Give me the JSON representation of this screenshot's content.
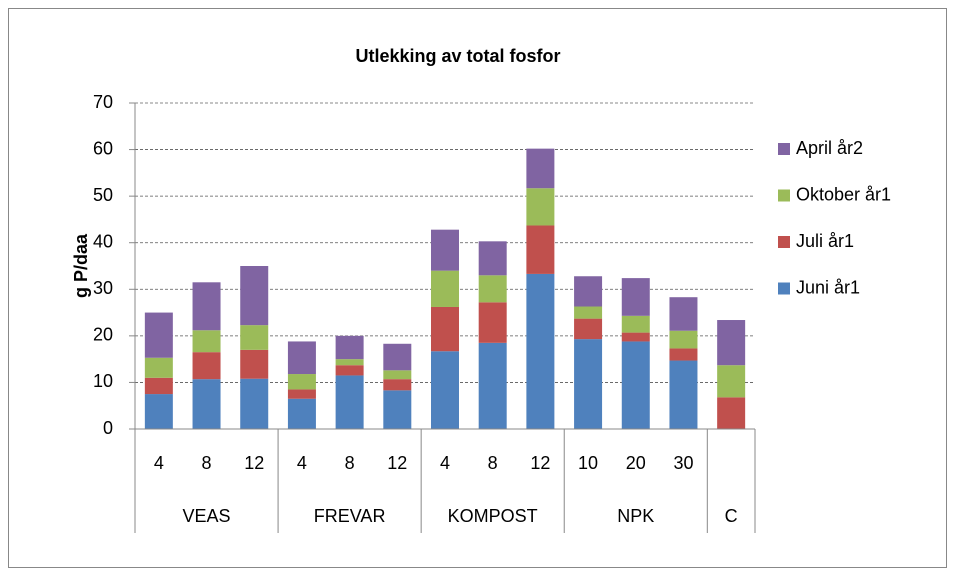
{
  "chart_data": {
    "type": "bar",
    "stacked": true,
    "title": "Utlekking av total fosfor",
    "y_label": "g P/daa",
    "groups": [
      {
        "name": "VEAS",
        "categories": [
          "4",
          "8",
          "12"
        ]
      },
      {
        "name": "FREVAR",
        "categories": [
          "4",
          "8",
          "12"
        ]
      },
      {
        "name": "KOMPOST",
        "categories": [
          "4",
          "8",
          "12"
        ]
      },
      {
        "name": "NPK",
        "categories": [
          "10",
          "20",
          "30"
        ]
      },
      {
        "name": "C",
        "categories": [
          null
        ]
      }
    ],
    "series": [
      {
        "name": "Juni år1",
        "color": "#4f81bd",
        "values": [
          7.5,
          10.7,
          10.8,
          6.5,
          11.5,
          8.3,
          16.7,
          18.5,
          33.3,
          19.3,
          18.8,
          14.7,
          0
        ]
      },
      {
        "name": "Juli år1",
        "color": "#c0504d",
        "values": [
          3.5,
          5.8,
          6.2,
          2.0,
          2.2,
          2.4,
          9.5,
          8.7,
          10.4,
          4.4,
          1.9,
          2.6,
          6.8
        ]
      },
      {
        "name": "Oktober år1",
        "color": "#9bbb59",
        "values": [
          4.3,
          4.7,
          5.3,
          3.3,
          1.3,
          1.9,
          7.8,
          5.8,
          8.0,
          2.6,
          3.6,
          3.8,
          6.9
        ]
      },
      {
        "name": "April år2",
        "color": "#8064a2",
        "values": [
          9.7,
          10.3,
          12.7,
          7.0,
          5.0,
          5.7,
          8.8,
          7.3,
          8.5,
          6.5,
          8.1,
          7.2,
          9.7
        ]
      }
    ],
    "ylim": [
      0,
      70
    ],
    "yticks": [
      0,
      10,
      20,
      30,
      40,
      50,
      60,
      70
    ],
    "grid": true,
    "legend": "right"
  }
}
